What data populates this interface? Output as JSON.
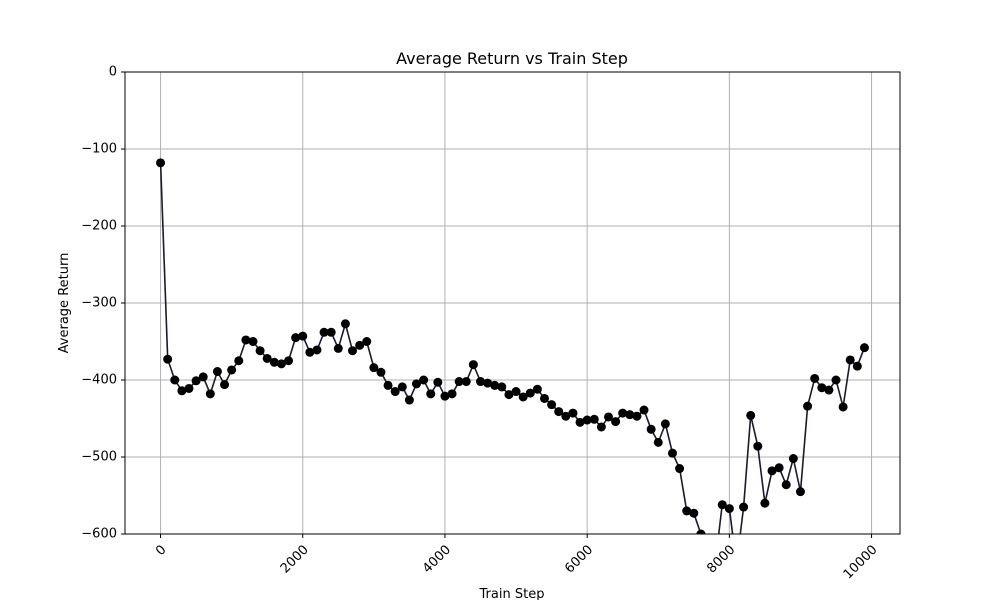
{
  "chart_data": {
    "type": "line",
    "title": "Average Return vs Train Step",
    "xlabel": "Train Step",
    "ylabel": "Average Return",
    "xlim": [
      -500,
      10400
    ],
    "ylim": [
      -600,
      0
    ],
    "xticks": [
      0,
      2000,
      4000,
      6000,
      8000,
      10000
    ],
    "yticks": [
      0,
      -100,
      -200,
      -300,
      -400,
      -500,
      -600
    ],
    "grid": true,
    "series": [
      {
        "color": "#000000",
        "marker": "circle",
        "x": [
          0,
          100,
          200,
          300,
          400,
          500,
          600,
          700,
          800,
          900,
          1000,
          1100,
          1200,
          1300,
          1400,
          1500,
          1600,
          1700,
          1800,
          1900,
          2000,
          2100,
          2200,
          2300,
          2400,
          2500,
          2600,
          2700,
          2800,
          2900,
          3000,
          3100,
          3200,
          3300,
          3400,
          3500,
          3600,
          3700,
          3800,
          3900,
          4000,
          4100,
          4200,
          4300,
          4400,
          4500,
          4600,
          4700,
          4800,
          4900,
          5000,
          5100,
          5200,
          5300,
          5400,
          5500,
          5600,
          5700,
          5800,
          5900,
          6000,
          6100,
          6200,
          6300,
          6400,
          6500,
          6600,
          6700,
          6800,
          6900,
          7000,
          7100,
          7200,
          7300,
          7400,
          7500,
          7600,
          7700,
          7800,
          7900,
          8000,
          8100,
          8200,
          8300,
          8400,
          8500,
          8600,
          8700,
          8800,
          8900,
          9000,
          9100,
          9200,
          9300,
          9400,
          9500,
          9600,
          9700,
          9800,
          9900
        ],
        "y": [
          -118,
          -373,
          -400,
          -414,
          -411,
          -401,
          -396,
          -418,
          -389,
          -406,
          -387,
          -375,
          -348,
          -350,
          -362,
          -372,
          -377,
          -379,
          -375,
          -345,
          -343,
          -364,
          -361,
          -338,
          -338,
          -359,
          -327,
          -362,
          -355,
          -350,
          -384,
          -390,
          -407,
          -415,
          -409,
          -426,
          -405,
          -400,
          -418,
          -403,
          -421,
          -418,
          -402,
          -402,
          -380,
          -402,
          -404,
          -407,
          -409,
          -419,
          -415,
          -422,
          -417,
          -412,
          -424,
          -432,
          -441,
          -447,
          -443,
          -455,
          -452,
          -451,
          -461,
          -448,
          -454,
          -443,
          -445,
          -447,
          -439,
          -464,
          -481,
          -457,
          -495,
          -515,
          -570,
          -573,
          -600,
          -630,
          -640,
          -562,
          -567,
          -640,
          -565,
          -446,
          -486,
          -560,
          -518,
          -514,
          -536,
          -502,
          -545,
          -434,
          -398,
          -410,
          -413,
          -400,
          -435,
          -374,
          -382,
          -358
        ]
      }
    ]
  }
}
